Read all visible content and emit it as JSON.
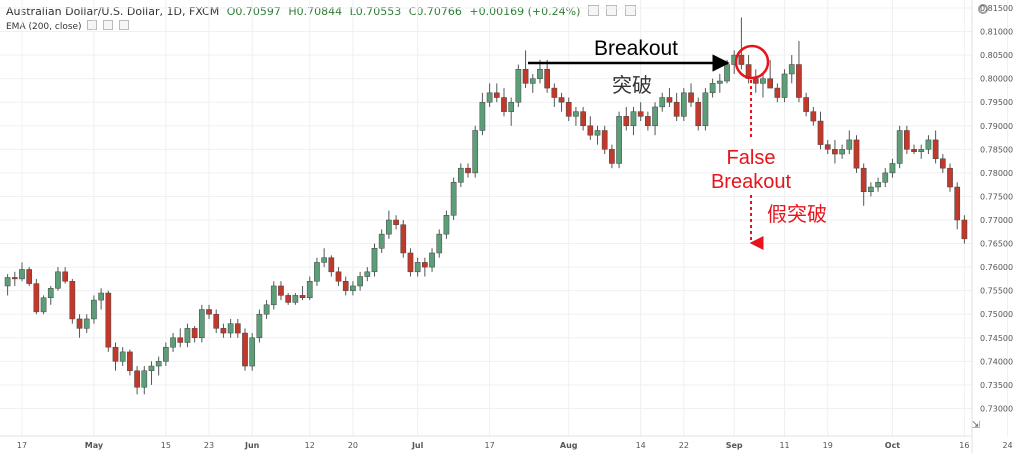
{
  "header": {
    "symbol": "Australian Dollar/U.S. Dollar, 1D, FXCM",
    "open": "O0.70597",
    "high": "H0.70844",
    "low": "L0.70553",
    "close": "C0.70766",
    "change": "+0.00169 (+0.24%)"
  },
  "indicator": {
    "label": "EMA (200, close)"
  },
  "annotations": {
    "breakout_en": "Breakout",
    "breakout_zh": "突破",
    "false_en_line1": "False",
    "false_en_line2": "Breakout",
    "false_zh": "假突破"
  },
  "colors": {
    "up": "#5b9e78",
    "down": "#c0392b",
    "annotation_red": "#e8141b",
    "arrow_black": "#000000",
    "grid": "#eef0f3"
  },
  "chart_data": {
    "type": "candlestick",
    "ylim": [
      0.725,
      0.815
    ],
    "yticks": [
      "0.81500",
      "0.81000",
      "0.80500",
      "0.80000",
      "0.79500",
      "0.79000",
      "0.78500",
      "0.78000",
      "0.77500",
      "0.77000",
      "0.76500",
      "0.76000",
      "0.75500",
      "0.75000",
      "0.74500",
      "0.74000",
      "0.73500",
      "0.73000"
    ],
    "ytick_values": [
      0.815,
      0.81,
      0.805,
      0.8,
      0.795,
      0.79,
      0.785,
      0.78,
      0.775,
      0.77,
      0.765,
      0.76,
      0.755,
      0.75,
      0.745,
      0.74,
      0.735,
      0.73
    ],
    "xticks": [
      {
        "label": "17",
        "i": 2,
        "bold": false
      },
      {
        "label": "May",
        "i": 12,
        "bold": true
      },
      {
        "label": "15",
        "i": 22,
        "bold": false
      },
      {
        "label": "23",
        "i": 28,
        "bold": false
      },
      {
        "label": "Jun",
        "i": 34,
        "bold": true
      },
      {
        "label": "12",
        "i": 42,
        "bold": false
      },
      {
        "label": "20",
        "i": 48,
        "bold": false
      },
      {
        "label": "Jul",
        "i": 57,
        "bold": true
      },
      {
        "label": "17",
        "i": 67,
        "bold": false
      },
      {
        "label": "Aug",
        "i": 78,
        "bold": true
      },
      {
        "label": "14",
        "i": 88,
        "bold": false
      },
      {
        "label": "22",
        "i": 94,
        "bold": false
      },
      {
        "label": "Sep",
        "i": 101,
        "bold": true
      },
      {
        "label": "11",
        "i": 108,
        "bold": false
      },
      {
        "label": "19",
        "i": 114,
        "bold": false
      },
      {
        "label": "Oct",
        "i": 123,
        "bold": true
      },
      {
        "label": "16",
        "i": 133,
        "bold": false
      },
      {
        "label": "24",
        "i": 139,
        "bold": false
      }
    ],
    "candles": [
      [
        0.756,
        0.7585,
        0.754,
        0.7578
      ],
      [
        0.7578,
        0.759,
        0.756,
        0.7575
      ],
      [
        0.7575,
        0.761,
        0.757,
        0.7595
      ],
      [
        0.7595,
        0.76,
        0.756,
        0.7565
      ],
      [
        0.7565,
        0.7575,
        0.75,
        0.7505
      ],
      [
        0.7505,
        0.754,
        0.75,
        0.7535
      ],
      [
        0.7535,
        0.756,
        0.752,
        0.7555
      ],
      [
        0.7555,
        0.76,
        0.755,
        0.759
      ],
      [
        0.759,
        0.76,
        0.7565,
        0.757
      ],
      [
        0.757,
        0.7575,
        0.748,
        0.749
      ],
      [
        0.749,
        0.75,
        0.745,
        0.747
      ],
      [
        0.747,
        0.75,
        0.746,
        0.749
      ],
      [
        0.749,
        0.754,
        0.748,
        0.753
      ],
      [
        0.753,
        0.7555,
        0.751,
        0.7545
      ],
      [
        0.7545,
        0.755,
        0.742,
        0.743
      ],
      [
        0.743,
        0.744,
        0.738,
        0.74
      ],
      [
        0.74,
        0.743,
        0.739,
        0.742
      ],
      [
        0.742,
        0.7425,
        0.737,
        0.738
      ],
      [
        0.738,
        0.739,
        0.733,
        0.7345
      ],
      [
        0.7345,
        0.739,
        0.733,
        0.738
      ],
      [
        0.738,
        0.74,
        0.735,
        0.739
      ],
      [
        0.739,
        0.741,
        0.737,
        0.74
      ],
      [
        0.74,
        0.744,
        0.739,
        0.743
      ],
      [
        0.743,
        0.746,
        0.742,
        0.745
      ],
      [
        0.745,
        0.747,
        0.743,
        0.744
      ],
      [
        0.744,
        0.748,
        0.743,
        0.747
      ],
      [
        0.747,
        0.7475,
        0.744,
        0.745
      ],
      [
        0.745,
        0.752,
        0.744,
        0.751
      ],
      [
        0.751,
        0.752,
        0.749,
        0.75
      ],
      [
        0.75,
        0.751,
        0.746,
        0.747
      ],
      [
        0.747,
        0.748,
        0.745,
        0.746
      ],
      [
        0.746,
        0.749,
        0.745,
        0.748
      ],
      [
        0.748,
        0.749,
        0.745,
        0.746
      ],
      [
        0.746,
        0.747,
        0.738,
        0.739
      ],
      [
        0.739,
        0.746,
        0.738,
        0.745
      ],
      [
        0.745,
        0.751,
        0.744,
        0.75
      ],
      [
        0.75,
        0.753,
        0.749,
        0.752
      ],
      [
        0.752,
        0.757,
        0.751,
        0.756
      ],
      [
        0.756,
        0.757,
        0.753,
        0.754
      ],
      [
        0.754,
        0.7545,
        0.752,
        0.7525
      ],
      [
        0.7525,
        0.7545,
        0.752,
        0.754
      ],
      [
        0.754,
        0.756,
        0.753,
        0.7535
      ],
      [
        0.7535,
        0.758,
        0.753,
        0.757
      ],
      [
        0.757,
        0.762,
        0.756,
        0.761
      ],
      [
        0.761,
        0.764,
        0.76,
        0.762
      ],
      [
        0.762,
        0.7625,
        0.758,
        0.759
      ],
      [
        0.759,
        0.76,
        0.756,
        0.757
      ],
      [
        0.757,
        0.758,
        0.754,
        0.755
      ],
      [
        0.755,
        0.757,
        0.754,
        0.756
      ],
      [
        0.756,
        0.759,
        0.755,
        0.758
      ],
      [
        0.758,
        0.76,
        0.757,
        0.759
      ],
      [
        0.759,
        0.765,
        0.758,
        0.764
      ],
      [
        0.764,
        0.768,
        0.763,
        0.767
      ],
      [
        0.767,
        0.772,
        0.766,
        0.77
      ],
      [
        0.77,
        0.771,
        0.768,
        0.769
      ],
      [
        0.769,
        0.77,
        0.762,
        0.763
      ],
      [
        0.763,
        0.764,
        0.758,
        0.759
      ],
      [
        0.759,
        0.762,
        0.758,
        0.761
      ],
      [
        0.761,
        0.762,
        0.758,
        0.76
      ],
      [
        0.76,
        0.764,
        0.759,
        0.763
      ],
      [
        0.763,
        0.768,
        0.762,
        0.767
      ],
      [
        0.767,
        0.772,
        0.766,
        0.771
      ],
      [
        0.771,
        0.779,
        0.77,
        0.778
      ],
      [
        0.778,
        0.782,
        0.777,
        0.781
      ],
      [
        0.781,
        0.782,
        0.779,
        0.78
      ],
      [
        0.78,
        0.79,
        0.779,
        0.789
      ],
      [
        0.789,
        0.797,
        0.788,
        0.795
      ],
      [
        0.795,
        0.799,
        0.794,
        0.797
      ],
      [
        0.797,
        0.799,
        0.795,
        0.796
      ],
      [
        0.796,
        0.798,
        0.792,
        0.793
      ],
      [
        0.793,
        0.796,
        0.79,
        0.795
      ],
      [
        0.795,
        0.803,
        0.794,
        0.802
      ],
      [
        0.802,
        0.806,
        0.798,
        0.799
      ],
      [
        0.799,
        0.801,
        0.797,
        0.8
      ],
      [
        0.8,
        0.804,
        0.799,
        0.802
      ],
      [
        0.802,
        0.804,
        0.797,
        0.798
      ],
      [
        0.798,
        0.799,
        0.794,
        0.796
      ],
      [
        0.796,
        0.797,
        0.793,
        0.795
      ],
      [
        0.795,
        0.796,
        0.791,
        0.792
      ],
      [
        0.792,
        0.794,
        0.79,
        0.793
      ],
      [
        0.793,
        0.794,
        0.789,
        0.79
      ],
      [
        0.79,
        0.792,
        0.787,
        0.788
      ],
      [
        0.788,
        0.79,
        0.786,
        0.789
      ],
      [
        0.789,
        0.79,
        0.784,
        0.785
      ],
      [
        0.785,
        0.786,
        0.781,
        0.782
      ],
      [
        0.782,
        0.793,
        0.781,
        0.792
      ],
      [
        0.792,
        0.794,
        0.789,
        0.79
      ],
      [
        0.79,
        0.794,
        0.788,
        0.793
      ],
      [
        0.793,
        0.795,
        0.791,
        0.792
      ],
      [
        0.792,
        0.793,
        0.789,
        0.79
      ],
      [
        0.79,
        0.795,
        0.788,
        0.794
      ],
      [
        0.794,
        0.797,
        0.793,
        0.796
      ],
      [
        0.796,
        0.798,
        0.794,
        0.795
      ],
      [
        0.795,
        0.797,
        0.791,
        0.792
      ],
      [
        0.792,
        0.798,
        0.791,
        0.797
      ],
      [
        0.797,
        0.799,
        0.794,
        0.795
      ],
      [
        0.795,
        0.796,
        0.789,
        0.79
      ],
      [
        0.79,
        0.798,
        0.789,
        0.797
      ],
      [
        0.797,
        0.8,
        0.796,
        0.799
      ],
      [
        0.799,
        0.801,
        0.797,
        0.7995
      ],
      [
        0.7995,
        0.804,
        0.799,
        0.803
      ],
      [
        0.803,
        0.806,
        0.801,
        0.805
      ],
      [
        0.805,
        0.813,
        0.802,
        0.803
      ],
      [
        0.803,
        0.805,
        0.799,
        0.8
      ],
      [
        0.8,
        0.802,
        0.797,
        0.799
      ],
      [
        0.799,
        0.801,
        0.796,
        0.8
      ],
      [
        0.8,
        0.804,
        0.798,
        0.798
      ],
      [
        0.798,
        0.799,
        0.795,
        0.796
      ],
      [
        0.796,
        0.802,
        0.795,
        0.801
      ],
      [
        0.801,
        0.805,
        0.799,
        0.803
      ],
      [
        0.803,
        0.808,
        0.795,
        0.796
      ],
      [
        0.796,
        0.797,
        0.792,
        0.793
      ],
      [
        0.793,
        0.794,
        0.79,
        0.791
      ],
      [
        0.791,
        0.793,
        0.785,
        0.786
      ],
      [
        0.786,
        0.787,
        0.784,
        0.785
      ],
      [
        0.785,
        0.787,
        0.782,
        0.784
      ],
      [
        0.784,
        0.786,
        0.783,
        0.785
      ],
      [
        0.785,
        0.789,
        0.784,
        0.787
      ],
      [
        0.787,
        0.788,
        0.78,
        0.781
      ],
      [
        0.781,
        0.782,
        0.773,
        0.776
      ],
      [
        0.776,
        0.778,
        0.775,
        0.777
      ],
      [
        0.777,
        0.779,
        0.776,
        0.778
      ],
      [
        0.778,
        0.781,
        0.777,
        0.78
      ],
      [
        0.78,
        0.783,
        0.779,
        0.782
      ],
      [
        0.782,
        0.79,
        0.781,
        0.789
      ],
      [
        0.789,
        0.79,
        0.784,
        0.785
      ],
      [
        0.785,
        0.786,
        0.784,
        0.7845
      ],
      [
        0.7845,
        0.786,
        0.783,
        0.785
      ],
      [
        0.785,
        0.788,
        0.784,
        0.787
      ],
      [
        0.787,
        0.789,
        0.782,
        0.783
      ],
      [
        0.783,
        0.784,
        0.78,
        0.781
      ],
      [
        0.781,
        0.782,
        0.776,
        0.777
      ],
      [
        0.777,
        0.778,
        0.768,
        0.77
      ],
      [
        0.77,
        0.771,
        0.765,
        0.766
      ]
    ]
  }
}
